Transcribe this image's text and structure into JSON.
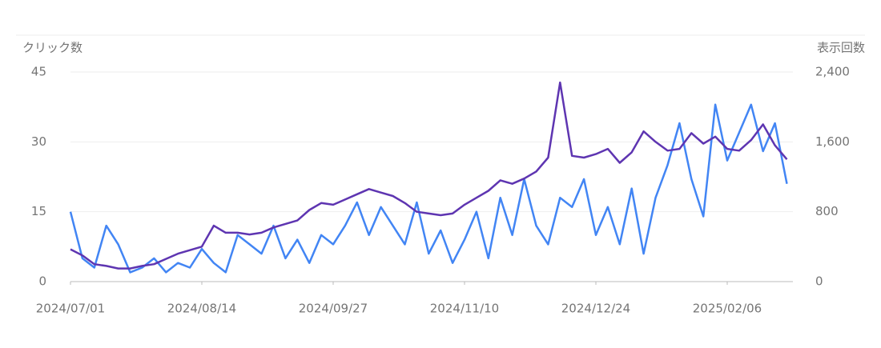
{
  "chart_data": {
    "type": "line",
    "y_label": "クリック数",
    "y2_label": "表示回数",
    "x": [
      "2024/07/01",
      "2024/07/05",
      "2024/07/09",
      "2024/07/13",
      "2024/07/17",
      "2024/07/21",
      "2024/07/25",
      "2024/07/29",
      "2024/08/02",
      "2024/08/06",
      "2024/08/10",
      "2024/08/14",
      "2024/08/18",
      "2024/08/22",
      "2024/08/26",
      "2024/08/30",
      "2024/09/03",
      "2024/09/07",
      "2024/09/11",
      "2024/09/15",
      "2024/09/19",
      "2024/09/23",
      "2024/09/27",
      "2024/10/01",
      "2024/10/05",
      "2024/10/09",
      "2024/10/13",
      "2024/10/17",
      "2024/10/21",
      "2024/10/25",
      "2024/10/29",
      "2024/11/02",
      "2024/11/06",
      "2024/11/10",
      "2024/11/14",
      "2024/11/18",
      "2024/11/22",
      "2024/11/26",
      "2024/11/30",
      "2024/12/04",
      "2024/12/08",
      "2024/12/12",
      "2024/12/16",
      "2024/12/20",
      "2024/12/24",
      "2024/12/28",
      "2025/01/01",
      "2025/01/05",
      "2025/01/09",
      "2025/01/13",
      "2025/01/17",
      "2025/01/21",
      "2025/01/25",
      "2025/01/29",
      "2025/02/02",
      "2025/02/06",
      "2025/02/10",
      "2025/02/14",
      "2025/02/18",
      "2025/02/22",
      "2025/02/26"
    ],
    "xlim": [
      "2024/07/01",
      "2025/02/28"
    ],
    "xticks": [
      "2024/07/01",
      "2024/08/14",
      "2024/09/27",
      "2024/11/10",
      "2024/12/24",
      "2025/02/06"
    ],
    "ylim": [
      0,
      45
    ],
    "yticks": [
      0,
      15,
      30,
      45
    ],
    "y2lim": [
      0,
      2400
    ],
    "y2ticks": [
      0,
      800,
      {
        "value": 1600,
        "label": "1,600"
      },
      {
        "value": 2400,
        "label": "2,400"
      }
    ],
    "grid": true,
    "series": [
      {
        "name": "クリック数",
        "color": "#4285f4",
        "values": [
          15,
          5,
          3,
          12,
          8,
          2,
          3,
          5,
          2,
          4,
          3,
          7,
          4,
          2,
          10,
          8,
          6,
          12,
          5,
          9,
          4,
          10,
          8,
          12,
          17,
          10,
          16,
          12,
          8,
          17,
          6,
          11,
          4,
          9,
          15,
          5,
          18,
          10,
          22,
          12,
          8,
          18,
          16,
          22,
          10,
          16,
          8,
          20,
          6,
          18,
          25,
          34,
          22,
          14,
          38,
          26,
          32,
          38,
          28,
          34,
          21
        ]
      },
      {
        "name": "表示回数",
        "color": "#5e35b1",
        "axis": "y2",
        "values": [
          370,
          300,
          200,
          180,
          150,
          150,
          180,
          200,
          260,
          320,
          360,
          400,
          640,
          560,
          560,
          540,
          560,
          620,
          660,
          700,
          820,
          900,
          880,
          940,
          1000,
          1060,
          1020,
          980,
          900,
          800,
          780,
          760,
          780,
          880,
          960,
          1040,
          1160,
          1120,
          1180,
          1260,
          1420,
          2280,
          1440,
          1420,
          1460,
          1520,
          1360,
          1480,
          1720,
          1600,
          1500,
          1520,
          1700,
          1580,
          1660,
          1520,
          1500,
          1620,
          1800,
          1560,
          1400
        ]
      }
    ]
  }
}
